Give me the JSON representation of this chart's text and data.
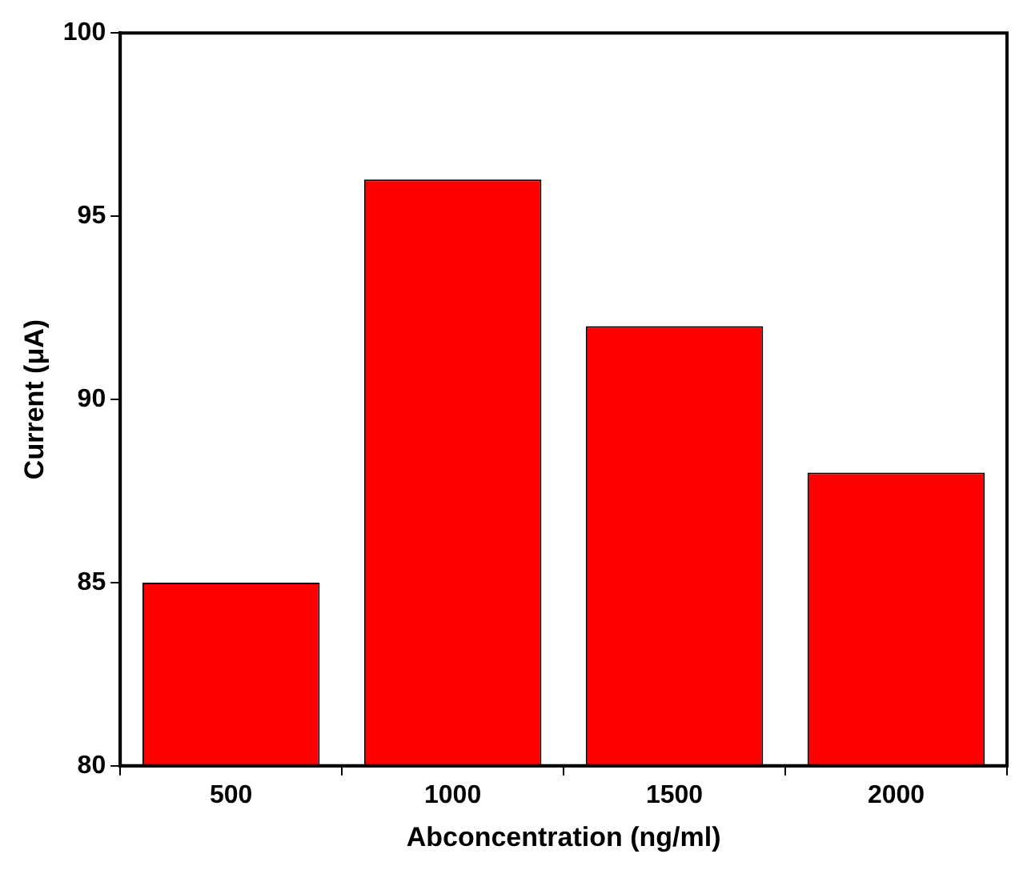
{
  "chart_data": {
    "type": "bar",
    "xlabel": "Abconcentration (ng/ml)",
    "ylabel": "Current (μA)",
    "categories": [
      "500",
      "1000",
      "1500",
      "2000"
    ],
    "values": [
      85,
      96,
      92,
      88
    ],
    "color": "#ff0000",
    "ylim": [
      80,
      100
    ],
    "yticks": [
      80,
      85,
      90,
      95,
      100
    ],
    "grid": false,
    "legend": false
  }
}
